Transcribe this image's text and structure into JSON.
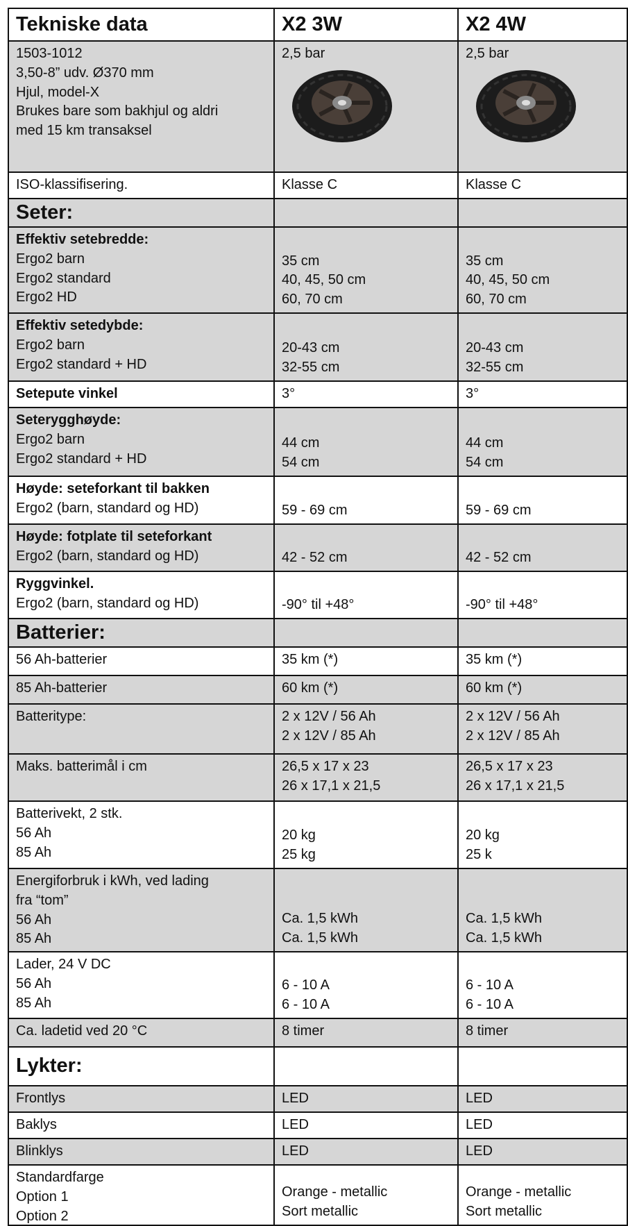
{
  "table": {
    "header": [
      "Tekniske data",
      "X2 3W",
      "X2 4W"
    ],
    "rows": [
      [
        [
          "1503-1012",
          "3,50-8” udv. Ø370 mm",
          "Hjul, model-X",
          "Brukes bare som bakhjul og aldri",
          "med 15 km transaksel"
        ],
        [
          "2,5 bar"
        ],
        [
          "2,5 bar"
        ]
      ],
      [
        [
          "ISO-klassifisering."
        ],
        [
          "Klasse C"
        ],
        [
          "Klasse C"
        ]
      ],
      [
        [
          "Seter:"
        ],
        [],
        []
      ],
      [
        [
          "Effektiv setebredde:",
          "Ergo2  barn",
          "Ergo2 standard",
          "Ergo2 HD"
        ],
        [
          "35 cm",
          "40, 45, 50 cm",
          "60, 70 cm"
        ],
        [
          "35 cm",
          "40, 45, 50 cm",
          "60, 70 cm"
        ]
      ],
      [
        [
          "Effektiv setedybde:",
          "Ergo2 barn",
          "Ergo2 standard + HD"
        ],
        [
          "20-43 cm",
          "32-55 cm"
        ],
        [
          "20-43 cm",
          "32-55 cm"
        ]
      ],
      [
        [
          "Setepute vinkel"
        ],
        [
          "3°"
        ],
        [
          "3°"
        ]
      ],
      [
        [
          "Seterygghøyde:",
          "Ergo2 barn",
          "Ergo2 standard + HD"
        ],
        [
          "44 cm",
          "54 cm"
        ],
        [
          "44 cm",
          "54 cm"
        ]
      ],
      [
        [
          "Høyde: seteforkant til bakken",
          "Ergo2 (barn, standard og HD)"
        ],
        [
          "59 - 69 cm"
        ],
        [
          "59 - 69 cm"
        ]
      ],
      [
        [
          "Høyde: fotplate til seteforkant",
          "Ergo2 (barn, standard og HD)"
        ],
        [
          "42 - 52 cm"
        ],
        [
          "42 - 52 cm"
        ]
      ],
      [
        [
          "Ryggvinkel.",
          "Ergo2 (barn, standard og HD)"
        ],
        [
          "-90° til +48°"
        ],
        [
          "-90° til +48°"
        ]
      ],
      [
        [
          "Batterier:"
        ],
        [],
        []
      ],
      [
        [
          "56 Ah-batterier"
        ],
        [
          "35 km (*)"
        ],
        [
          "35 km (*)"
        ]
      ],
      [
        [
          "85 Ah-batterier"
        ],
        [
          "60 km (*)"
        ],
        [
          "60 km (*)"
        ]
      ],
      [
        [
          "Batteritype:"
        ],
        [
          "2 x 12V / 56 Ah",
          "2 x 12V / 85 Ah"
        ],
        [
          "2 x 12V / 56 Ah",
          "2 x 12V / 85 Ah"
        ]
      ],
      [
        [
          "Maks. batterimål i cm"
        ],
        [
          "26,5 x 17 x 23",
          "26 x 17,1 x 21,5"
        ],
        [
          "26,5 x 17 x 23",
          "26 x 17,1 x 21,5"
        ]
      ],
      [
        [
          "Batterivekt, 2 stk.",
          "56 Ah",
          "85 Ah"
        ],
        [
          "20 kg",
          "25 kg"
        ],
        [
          "20 kg",
          "25 k"
        ]
      ],
      [
        [
          "Energiforbruk i kWh, ved lading",
          "fra “tom”",
          "56 Ah",
          "85 Ah"
        ],
        [
          "Ca. 1,5 kWh",
          "Ca. 1,5 kWh"
        ],
        [
          "Ca. 1,5 kWh",
          "Ca. 1,5 kWh"
        ]
      ],
      [
        [
          "Lader, 24 V DC",
          "56 Ah",
          "85 Ah"
        ],
        [
          "6 - 10 A",
          "6 - 10 A"
        ],
        [
          "6 - 10 A",
          "6 - 10 A"
        ]
      ],
      [
        [
          "Ca. ladetid ved 20 °C"
        ],
        [
          "8 timer"
        ],
        [
          "8 timer"
        ]
      ],
      [
        [
          "Lykter:"
        ],
        [],
        []
      ],
      [
        [
          "Frontlys"
        ],
        [
          "LED"
        ],
        [
          "LED"
        ]
      ],
      [
        [
          "Baklys"
        ],
        [
          "LED"
        ],
        [
          "LED"
        ]
      ],
      [
        [
          "Blinklys"
        ],
        [
          "LED"
        ],
        [
          "LED"
        ]
      ],
      [
        [
          "Standardfarge",
          "Option 1",
          "Option 2"
        ],
        [
          "Orange - metallic",
          "Sort metallic"
        ],
        [
          "Orange - metallic",
          "Sort metallic"
        ]
      ]
    ]
  }
}
